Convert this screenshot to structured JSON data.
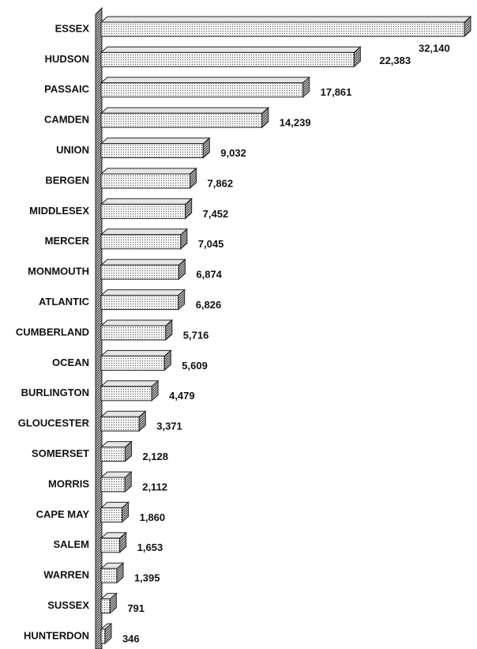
{
  "chart_data": {
    "type": "bar",
    "orientation": "horizontal",
    "categories": [
      "ESSEX",
      "HUDSON",
      "PASSAIC",
      "CAMDEN",
      "UNION",
      "BERGEN",
      "MIDDLESEX",
      "MERCER",
      "MONMOUTH",
      "ATLANTIC",
      "CUMBERLAND",
      "OCEAN",
      "BURLINGTON",
      "GLOUCESTER",
      "SOMERSET",
      "MORRIS",
      "CAPE MAY",
      "SALEM",
      "WARREN",
      "SUSSEX",
      "HUNTERDON"
    ],
    "values": [
      32140,
      22383,
      17861,
      14239,
      9032,
      7862,
      7452,
      7045,
      6874,
      6826,
      5716,
      5609,
      4479,
      3371,
      2128,
      2112,
      1860,
      1653,
      1395,
      791,
      346
    ],
    "value_labels": [
      "32,140",
      "22,383",
      "17,861",
      "14,239",
      "9,032",
      "7,862",
      "7,452",
      "7,045",
      "6,874",
      "6,826",
      "5,716",
      "5,609",
      "4,479",
      "3,371",
      "2,128",
      "2,112",
      "1,860",
      "1,653",
      "1,395",
      "791",
      "346"
    ],
    "color": "#e6e6e6"
  }
}
